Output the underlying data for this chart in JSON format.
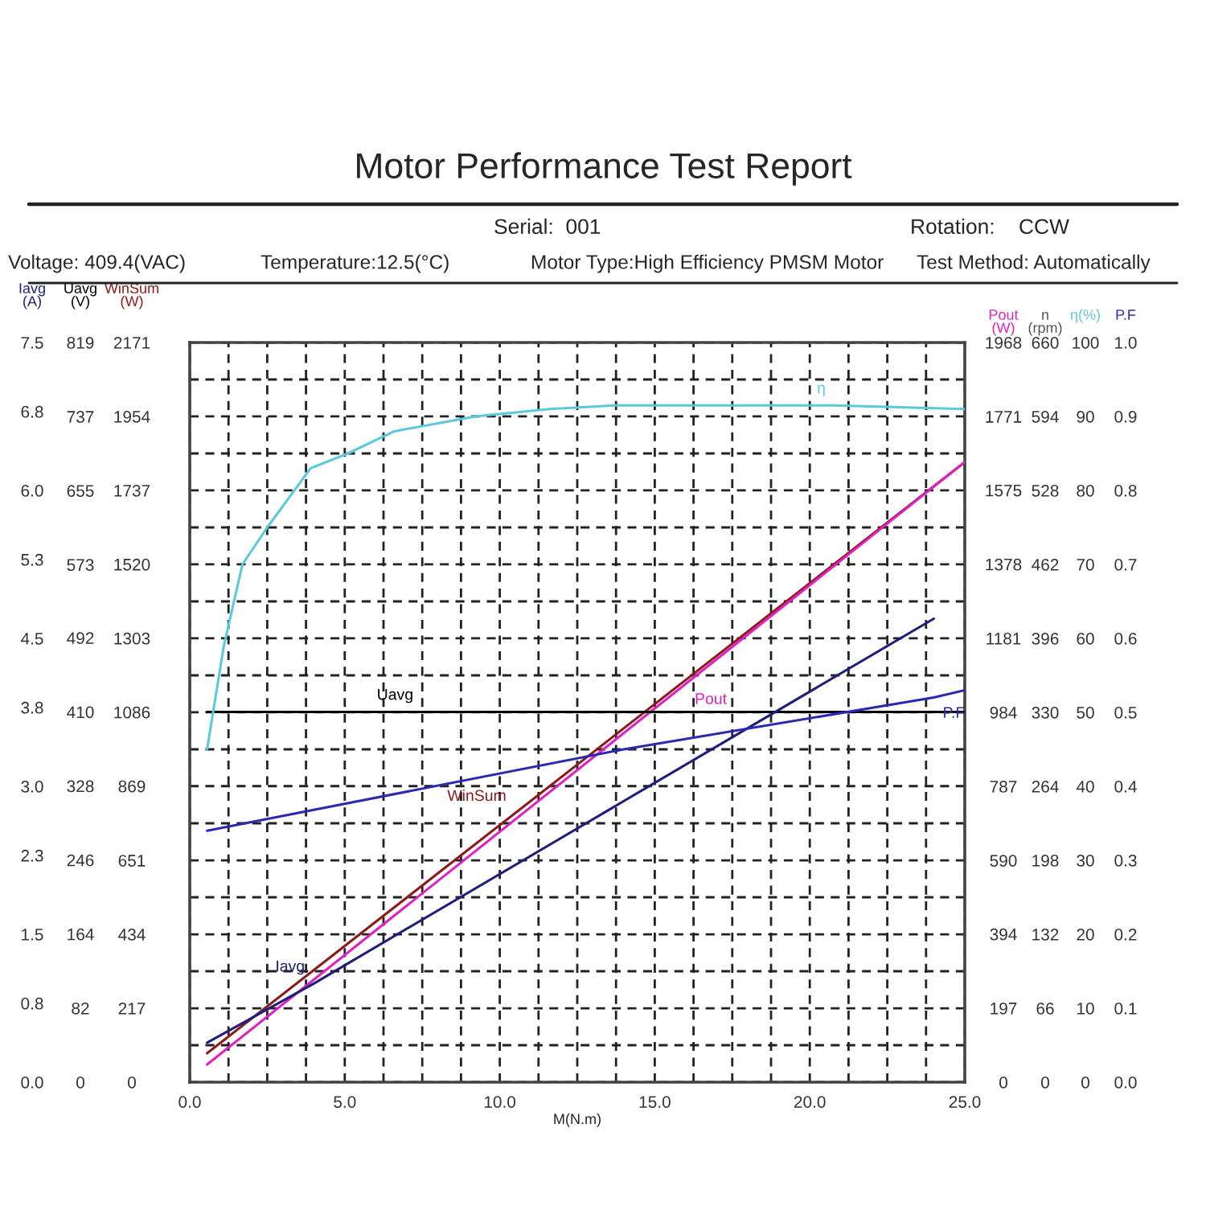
{
  "chart_data": [
    {
      "type": "line",
      "title": "Motor Performance Test Report",
      "annotations": [
        "Serial:  001",
        "Rotation:    CCW",
        "Voltage: 409.4(VAC)",
        "Temperature:12.5(°C)",
        "Motor Type:High Efficiency PMSM Motor",
        "Test Method: Automatically"
      ],
      "xlabel": "M(N.m)",
      "xlim": [
        0,
        25
      ],
      "xticks": [
        {
          "value": 0,
          "label": "0.0"
        },
        {
          "value": 1.25,
          "label": null
        },
        {
          "value": 2.5,
          "label": null
        },
        {
          "value": 3.75,
          "label": null
        },
        {
          "value": 5,
          "label": "5.0"
        },
        {
          "value": 6.25,
          "label": null
        },
        {
          "value": 7.5,
          "label": null
        },
        {
          "value": 8.75,
          "label": null
        },
        {
          "value": 10,
          "label": "10.0"
        },
        {
          "value": 11.25,
          "label": null
        },
        {
          "value": 12.5,
          "label": null
        },
        {
          "value": 13.75,
          "label": null
        },
        {
          "value": 15,
          "label": "15.0"
        },
        {
          "value": 16.25,
          "label": null
        },
        {
          "value": 17.5,
          "label": null
        },
        {
          "value": 18.75,
          "label": null
        },
        {
          "value": 20,
          "label": "20.0"
        },
        {
          "value": 21.25,
          "label": null
        },
        {
          "value": 22.5,
          "label": null
        },
        {
          "value": 23.75,
          "label": null
        },
        {
          "value": 25,
          "label": "25.0"
        }
      ],
      "ylabel": "WinSum\n(W)",
      "ylim": [
        0,
        2171
      ],
      "yticks": [
        0,
        {
          "value": 108.55,
          "label": null
        },
        217,
        {
          "value": 325.65,
          "label": null
        },
        434,
        {
          "value": 542.75,
          "label": null
        },
        651,
        {
          "value": 759.85,
          "label": null
        },
        869,
        {
          "value": 976.95,
          "label": null
        },
        1086,
        {
          "value": 1194.05,
          "label": null
        },
        1303,
        {
          "value": 1411.15,
          "label": null
        },
        1520,
        {
          "value": 1628.25,
          "label": null
        },
        1737,
        {
          "value": 1845.35,
          "label": null
        },
        1954,
        {
          "value": 2062.45,
          "label": null
        },
        2171
      ],
      "y2label": "Pout\n(W)",
      "y2lim": [
        0,
        1968
      ],
      "y2ticks": [
        0,
        197,
        394,
        590,
        787,
        984,
        1181,
        1378,
        1575,
        1771,
        1968
      ],
      "grid": true,
      "legend": false,
      "marker": "none",
      "line_style": "solid",
      "series": [
        {
          "name": "WinSum",
          "color": "#8b1a1a",
          "x": [
            0.56,
            10.5,
            25
          ],
          "values": [
            85,
            790,
            1820
          ]
        },
        {
          "name": "Pout",
          "color": "#e020c0",
          "axis": "y2",
          "x": [
            0.56,
            16,
            25
          ],
          "values": [
            47,
            1060,
            1650
          ]
        }
      ]
    },
    {
      "type": "line",
      "xlim": [
        0,
        25
      ],
      "tick_labels": "y",
      "ylabel": "Uavg\n(V)",
      "ylim": [
        0,
        819
      ],
      "yticks": [
        0,
        82,
        164,
        246,
        328,
        410,
        492,
        573,
        655,
        737,
        819
      ],
      "y2label": "n\n(rpm)",
      "y2lim": [
        0,
        660
      ],
      "y2ticks": [
        0,
        66,
        132,
        198,
        264,
        330,
        396,
        462,
        528,
        594,
        660
      ],
      "marker": "none",
      "line_style": "solid",
      "series": [
        {
          "name": "Uavg",
          "color": "#000000",
          "x": [
            0.56,
            7.5,
            25
          ],
          "values": [
            410,
            410,
            410
          ]
        }
      ]
    },
    {
      "type": "line",
      "xlim": [
        0,
        25
      ],
      "tick_labels": "y",
      "ylabel": "Iavg\n(A)",
      "ylim": [
        0,
        7.5
      ],
      "yticks": [
        {
          "value": 0,
          "label": "0.0"
        },
        0.8,
        1.5,
        2.3,
        {
          "value": 3,
          "label": "3.0"
        },
        3.8,
        4.5,
        5.3,
        {
          "value": 6,
          "label": "6.0"
        },
        6.8,
        7.5
      ],
      "y2label": "P.F",
      "y2lim": [
        0,
        1.0
      ],
      "y2ticks": [
        {
          "value": 0,
          "label": "0.0"
        },
        0.1,
        0.2,
        0.3,
        0.4,
        0.5,
        0.6,
        0.7,
        0.8,
        0.9,
        {
          "value": 1.0,
          "label": "1.0"
        }
      ],
      "marker": "none",
      "line_style": "solid",
      "series": [
        {
          "name": "Iavg",
          "color": "#1f1f7a",
          "x": [
            0.56,
            4.0,
            24.0
          ],
          "values": [
            0.4,
            1.0,
            4.7
          ]
        },
        {
          "name": "P.F",
          "color": "#2a2ab0",
          "axis": "y2",
          "x": [
            0.56,
            14,
            24,
            25
          ],
          "values": [
            0.34,
            0.45,
            0.52,
            0.53
          ]
        }
      ]
    },
    {
      "type": "line",
      "xlim": [
        0,
        25
      ],
      "tick_labels": "y",
      "ylabel": "η(%)",
      "ylim": [
        0,
        100
      ],
      "yticks": [
        0,
        10,
        20,
        30,
        40,
        50,
        60,
        70,
        80,
        90,
        100
      ],
      "marker": "none",
      "line_style": "solid",
      "series": [
        {
          "name": "η",
          "color": "#5bc8dc",
          "x": [
            0.56,
            1.1,
            1.7,
            2.5,
            3.9,
            5.1,
            6.6,
            7.9,
            9.2,
            11.6,
            13.7,
            20.8,
            25
          ],
          "values": [
            45,
            59,
            70,
            75,
            83,
            85,
            88,
            89,
            90,
            91,
            91.5,
            91.5,
            91
          ]
        }
      ]
    }
  ]
}
